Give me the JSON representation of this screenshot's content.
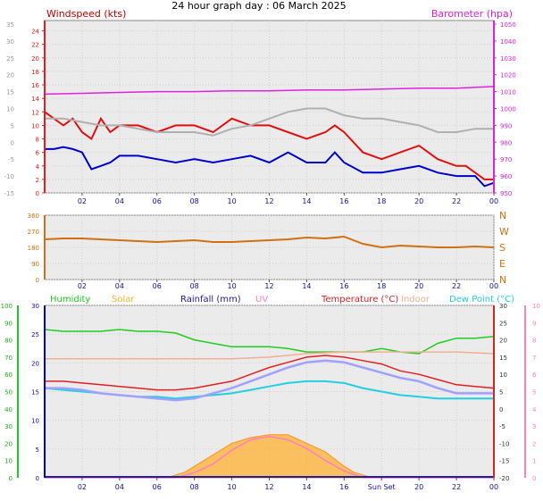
{
  "title": "24 hour graph day : 06 March 2025",
  "colors": {
    "windspeed": "#e01010",
    "windavg": "#0000cc",
    "windaxis": "#e02020",
    "barometer": "#e020e0",
    "baroaxis": "#e020e0",
    "grey_line": "#b0b0b0",
    "direction": "#d07010",
    "humidity": "#20cc20",
    "solar": "#ffb030",
    "solar_line": "#ff6060",
    "rainfall": "#2020a0",
    "uv": "#ff80c0",
    "temperature": "#e02020",
    "indoor": "#f0b090",
    "dewpoint": "#20d0e0",
    "feels": "#a0a0ff",
    "hum_axis": "#20cc20",
    "uv_axis": "#ff80c0",
    "day_axis_blue": "#0000cc"
  },
  "chart_data": [
    {
      "name_key": "wind_baro",
      "type": "line",
      "x_ticks": [
        "02",
        "04",
        "06",
        "08",
        "10",
        "12",
        "14",
        "16",
        "18",
        "20",
        "22",
        "00"
      ],
      "y_left": {
        "label": "Windspeed (kts)",
        "range": [
          0,
          25
        ],
        "ticks": [
          0,
          2,
          4,
          6,
          8,
          10,
          12,
          14,
          16,
          18,
          20,
          22,
          24
        ]
      },
      "y_right": {
        "label": "Barometer (hpa)",
        "range": [
          950,
          1050
        ],
        "ticks": [
          950,
          960,
          970,
          980,
          990,
          1000,
          1010,
          1020,
          1030,
          1040,
          1050
        ]
      },
      "y_left_outer": {
        "ticks": [
          -15,
          -10,
          -5,
          0,
          5,
          10,
          15,
          20,
          25,
          30,
          35
        ]
      },
      "series": [
        {
          "key": "windspeed",
          "x": [
            0,
            0.5,
            1,
            1.5,
            2,
            2.5,
            3,
            3.5,
            4,
            5,
            6,
            7,
            8,
            9,
            10,
            11,
            12,
            13,
            14,
            15,
            15.5,
            16,
            17,
            18,
            19,
            20,
            21,
            22,
            22.5,
            23,
            23.5,
            24
          ],
          "y": [
            12,
            11,
            10,
            11,
            9,
            8,
            11,
            9,
            10,
            10,
            9,
            10,
            10,
            9,
            11,
            10,
            10,
            9,
            8,
            9,
            10,
            9,
            6,
            5,
            6,
            7,
            5,
            4,
            4,
            3,
            2,
            2
          ]
        },
        {
          "key": "windavg",
          "x": [
            0,
            0.5,
            1,
            1.5,
            2,
            2.5,
            3,
            3.5,
            4,
            5,
            6,
            7,
            8,
            9,
            10,
            11,
            12,
            13,
            14,
            15,
            15.5,
            16,
            17,
            18,
            19,
            20,
            21,
            22,
            22.5,
            23,
            23.5,
            24
          ],
          "y": [
            6.5,
            6.5,
            6.8,
            6.5,
            6.0,
            3.5,
            4.0,
            4.5,
            5.5,
            5.5,
            5.0,
            4.5,
            5.0,
            4.5,
            5.0,
            5.5,
            4.5,
            6.0,
            4.5,
            4.5,
            6.0,
            4.5,
            3.0,
            3.0,
            3.5,
            4.0,
            3.0,
            2.5,
            2.5,
            2.5,
            1.0,
            1.5
          ]
        },
        {
          "key": "barometer",
          "x": [
            0,
            2,
            4,
            6,
            8,
            10,
            12,
            14,
            16,
            18,
            20,
            22,
            24
          ],
          "y": [
            1008.5,
            1009,
            1009.5,
            1010,
            1010,
            1010.5,
            1010.5,
            1011,
            1011,
            1011.5,
            1012,
            1012,
            1013
          ]
        },
        {
          "key": "grey",
          "x": [
            0,
            1,
            2,
            3,
            4,
            5,
            6,
            7,
            8,
            9,
            10,
            11,
            12,
            13,
            14,
            15,
            16,
            17,
            18,
            19,
            20,
            21,
            22,
            23,
            24
          ],
          "y": [
            11,
            11,
            10.5,
            10,
            10,
            9.5,
            9,
            9,
            9,
            8.5,
            9.5,
            10,
            11,
            12,
            12.5,
            12.5,
            11.5,
            11,
            11,
            10.5,
            10,
            9,
            9,
            9.5,
            9.5
          ]
        }
      ]
    },
    {
      "name_key": "direction",
      "type": "line",
      "x_ticks": [
        "02",
        "04",
        "06",
        "08",
        "10",
        "12",
        "14",
        "16",
        "18",
        "20",
        "22",
        "00"
      ],
      "y_left": {
        "range": [
          0,
          360
        ],
        "ticks": [
          0,
          90,
          180,
          270,
          360
        ]
      },
      "y_right": {
        "labels": [
          "N",
          "E",
          "S",
          "W",
          "N"
        ]
      },
      "series": [
        {
          "key": "direction",
          "x": [
            0,
            1,
            2,
            3,
            4,
            5,
            6,
            7,
            8,
            9,
            10,
            11,
            12,
            13,
            14,
            15,
            16,
            17,
            18,
            19,
            20,
            21,
            22,
            23,
            24
          ],
          "y": [
            225,
            230,
            230,
            225,
            220,
            215,
            210,
            215,
            220,
            210,
            210,
            215,
            220,
            225,
            235,
            230,
            240,
            200,
            180,
            190,
            185,
            180,
            180,
            185,
            180
          ]
        }
      ]
    },
    {
      "name_key": "temp_panel",
      "type": "line",
      "x_ticks": [
        "02",
        "04",
        "06",
        "08",
        "10",
        "12",
        "14",
        "16",
        "Sun Set",
        "20",
        "22",
        "00"
      ],
      "y_far_left": {
        "ticks": [
          0,
          10,
          20,
          30,
          40,
          50,
          60,
          70,
          80,
          90,
          100
        ]
      },
      "y_left": {
        "ticks": [
          0,
          5,
          10,
          15,
          20,
          25,
          30
        ]
      },
      "y_right": {
        "ticks": [
          -20,
          -15,
          -10,
          -5,
          0,
          5,
          10,
          15,
          20,
          25,
          30
        ]
      },
      "y_far_right": {
        "ticks": [
          0,
          1,
          2,
          3,
          4,
          5,
          6,
          7,
          8,
          9,
          10
        ]
      },
      "legend": [
        "Humidity",
        "Solar",
        "Rainfall (mm)",
        "UV",
        "Temperature (°C)",
        "Indoor",
        "Dew Point (°C)"
      ],
      "series": [
        {
          "key": "humidity",
          "x": [
            0,
            1,
            2,
            3,
            4,
            5,
            6,
            7,
            8,
            9,
            10,
            11,
            12,
            13,
            14,
            15,
            16,
            17,
            18,
            19,
            20,
            21,
            22,
            23,
            24
          ],
          "y": [
            86,
            85,
            85,
            85,
            86,
            85,
            85,
            84,
            80,
            78,
            76,
            76,
            76,
            75,
            73,
            73,
            73,
            73,
            75,
            73,
            72,
            78,
            81,
            81,
            82
          ]
        },
        {
          "key": "indoor",
          "x": [
            0,
            2,
            4,
            6,
            8,
            10,
            12,
            14,
            16,
            18,
            20,
            22,
            24
          ],
          "y": [
            14.5,
            14.5,
            14.5,
            14.5,
            14.5,
            14.5,
            15,
            16,
            16.5,
            16.5,
            16.5,
            16.5,
            16
          ]
        },
        {
          "key": "temperature",
          "x": [
            0,
            1,
            2,
            3,
            4,
            5,
            6,
            7,
            8,
            9,
            10,
            11,
            12,
            13,
            14,
            15,
            16,
            17,
            18,
            19,
            20,
            21,
            22,
            23,
            24
          ],
          "y": [
            8,
            8,
            7.5,
            7,
            6.5,
            6,
            5.5,
            5.5,
            6,
            7,
            8,
            10,
            12,
            13.5,
            15,
            15.5,
            15,
            14,
            13,
            11,
            10,
            8.5,
            7,
            6.5,
            6
          ]
        },
        {
          "key": "feels",
          "x": [
            0,
            1,
            2,
            3,
            4,
            5,
            6,
            7,
            8,
            9,
            10,
            11,
            12,
            13,
            14,
            15,
            16,
            17,
            18,
            19,
            20,
            21,
            22,
            23,
            24
          ],
          "y": [
            6,
            6,
            5.5,
            4.5,
            4,
            3.5,
            3,
            2.5,
            3,
            4.5,
            6,
            8,
            10,
            12,
            13.5,
            14,
            13.5,
            12,
            10.5,
            9,
            8,
            6,
            4.5,
            4.5,
            4.5
          ]
        },
        {
          "key": "dewpoint",
          "x": [
            0,
            1,
            2,
            3,
            4,
            5,
            6,
            7,
            8,
            9,
            10,
            11,
            12,
            13,
            14,
            15,
            16,
            17,
            18,
            19,
            20,
            21,
            22,
            23,
            24
          ],
          "y": [
            6,
            5.5,
            5,
            4.5,
            4,
            3.5,
            3.5,
            3,
            3.5,
            4,
            4.5,
            5.5,
            6.5,
            7.5,
            8,
            8,
            7.5,
            6,
            5,
            4,
            3.5,
            3,
            3,
            3,
            3
          ]
        },
        {
          "key": "solar",
          "x": [
            0,
            6.5,
            7,
            7.5,
            8,
            9,
            10,
            11,
            12,
            13,
            14,
            15,
            16,
            16.5,
            17,
            17.5,
            24
          ],
          "y": [
            0,
            0,
            0.5,
            1,
            2,
            4,
            6,
            7,
            7.5,
            7.5,
            6,
            4.5,
            2,
            1,
            0.5,
            0,
            0
          ]
        },
        {
          "key": "uv",
          "x": [
            0,
            7,
            8,
            9,
            10,
            11,
            12,
            13,
            14,
            15,
            16,
            17,
            24
          ],
          "y": [
            0,
            0,
            0.3,
            0.8,
            1.6,
            2.2,
            2.4,
            2.2,
            1.7,
            1.0,
            0.4,
            0,
            0
          ]
        }
      ]
    }
  ]
}
